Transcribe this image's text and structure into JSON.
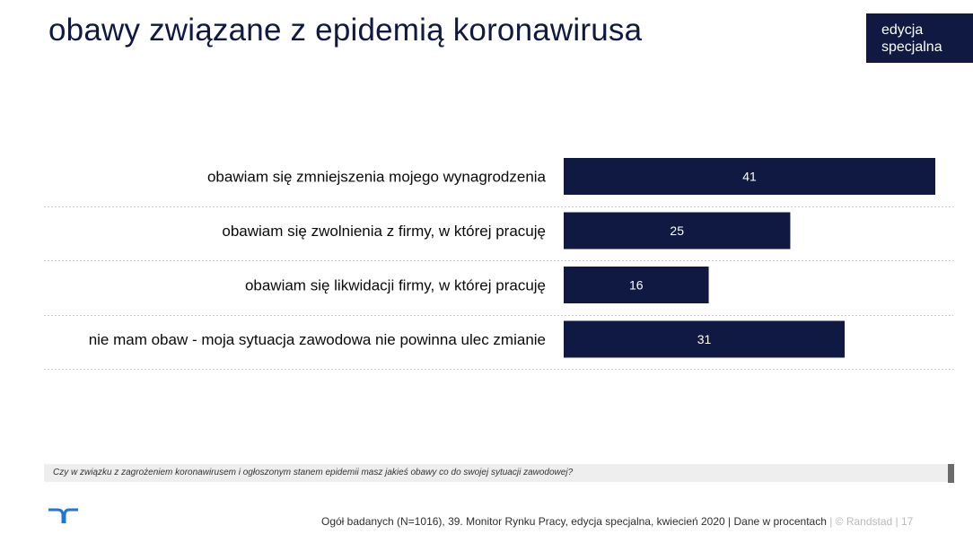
{
  "page": {
    "title": "obawy związane z epidemią koronawirusa",
    "badge": {
      "line1": "edycja",
      "line2": "specjalna"
    }
  },
  "chart_data": {
    "type": "bar",
    "orientation": "horizontal",
    "categories": [
      "obawiam się zmniejszenia mojego wynagrodzenia",
      "obawiam się zwolnienia z firmy, w której pracuję",
      "obawiam się likwidacji firmy, w której pracuję",
      "nie mam obaw - moja sytuacja zawodowa nie powinna ulec zmianie"
    ],
    "values": [
      41,
      25,
      16,
      31
    ],
    "data_labels": [
      "41",
      "25",
      "16",
      "31"
    ],
    "xlim": [
      0,
      41
    ],
    "bar_color": "#0f1941",
    "label_color": "#ffffff",
    "separator": "dotted"
  },
  "footer": {
    "question": "Czy w związku z zagrożeniem koronawirusem i ogłoszonym stanem epidemii masz jakieś obawy co do swojej sytuacji zawodowej?",
    "source": "Ogół badanych (N=1016), 39. Monitor Rynku Pracy, edycja specjalna, kwiecień 2020 | Dane w procentach",
    "copyright": " | © Randstad | ",
    "page_number": "17"
  },
  "colors": {
    "navy": "#0f1941",
    "brand_blue": "#2175d9",
    "question_bg": "#eeeeee"
  },
  "icons": {
    "logo": "randstad-logo-icon"
  }
}
